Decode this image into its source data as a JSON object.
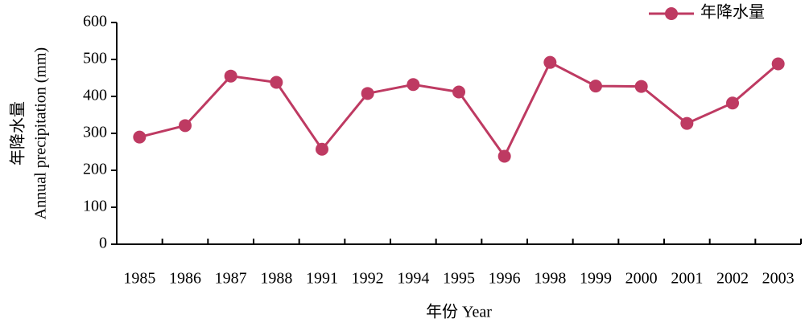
{
  "chart_data": {
    "type": "line",
    "ylabel": [
      "年降水量",
      "Annual precipitation (mm)"
    ],
    "xlabel": "年份 Year",
    "categories": [
      "1985",
      "1986",
      "1987",
      "1988",
      "1991",
      "1992",
      "1994",
      "1995",
      "1996",
      "1998",
      "1999",
      "2000",
      "2001",
      "2002",
      "2003"
    ],
    "series": [
      {
        "name": "年降水量",
        "color": "#be3a62",
        "values": [
          290,
          321,
          455,
          438,
          257,
          408,
          432,
          412,
          238,
          492,
          428,
          427,
          327,
          382,
          488
        ]
      }
    ],
    "ylim": [
      0,
      600
    ],
    "yticks": [
      0,
      100,
      200,
      300,
      400,
      500,
      600
    ],
    "legend": "top-right"
  }
}
